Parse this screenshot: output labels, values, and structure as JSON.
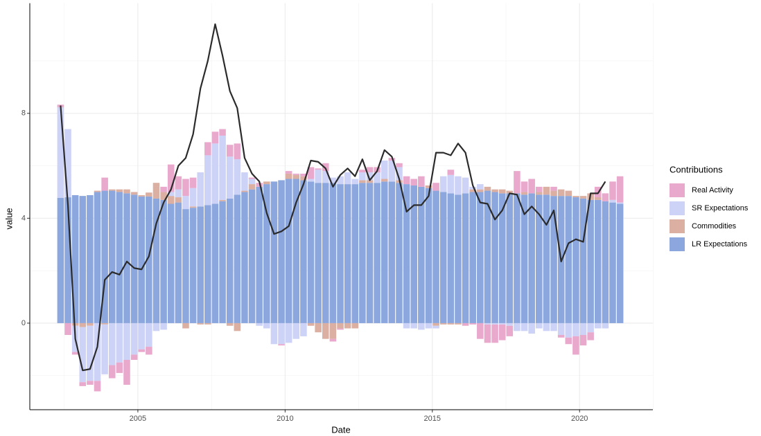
{
  "chart_data": {
    "type": "stacked-bar-line",
    "x_label": "Date",
    "y_label": "value",
    "legend_title": "Contributions",
    "x": [
      2002.375,
      2002.625,
      2002.875,
      2003.125,
      2003.375,
      2003.625,
      2003.875,
      2004.125,
      2004.375,
      2004.625,
      2004.875,
      2005.125,
      2005.375,
      2005.625,
      2005.875,
      2006.125,
      2006.375,
      2006.625,
      2006.875,
      2007.125,
      2007.375,
      2007.625,
      2007.875,
      2008.125,
      2008.375,
      2008.625,
      2008.875,
      2009.125,
      2009.375,
      2009.625,
      2009.875,
      2010.125,
      2010.375,
      2010.625,
      2010.875,
      2011.125,
      2011.375,
      2011.625,
      2011.875,
      2012.125,
      2012.375,
      2012.625,
      2012.875,
      2013.125,
      2013.375,
      2013.625,
      2013.875,
      2014.125,
      2014.375,
      2014.625,
      2014.875,
      2015.125,
      2015.375,
      2015.625,
      2015.875,
      2016.125,
      2016.375,
      2016.625,
      2016.875,
      2017.125,
      2017.375,
      2017.625,
      2017.875,
      2018.125,
      2018.375,
      2018.625,
      2018.875,
      2019.125,
      2019.375,
      2019.625,
      2019.875,
      2020.125,
      2020.375,
      2020.625,
      2020.875,
      2021.125,
      2021.375
    ],
    "series": [
      {
        "name": "Real Activity",
        "color": "#e9a9cd",
        "values": [
          0.1,
          -0.45,
          -0.1,
          -0.15,
          -0.15,
          -0.4,
          0.5,
          -0.5,
          -0.4,
          -0.95,
          -0.2,
          -0.1,
          -0.3,
          0,
          0.2,
          1.05,
          0.5,
          0.65,
          0.4,
          0,
          0.5,
          0.45,
          0.25,
          0.45,
          0.6,
          0,
          0.05,
          0.15,
          0,
          0,
          -0.05,
          0.1,
          0.05,
          0.1,
          0.45,
          0.05,
          0.3,
          -0.1,
          -0.05,
          0,
          0,
          0.1,
          0.2,
          0.2,
          0,
          0.1,
          0.15,
          0.3,
          0.25,
          0.4,
          0,
          0.3,
          0,
          0.2,
          0,
          -0.1,
          -0.05,
          -0.6,
          -0.7,
          -0.7,
          -0.6,
          -0.4,
          0.85,
          0.4,
          0.55,
          0.2,
          0,
          0.15,
          -0.1,
          -0.25,
          -0.7,
          -0.4,
          -0.3,
          0.4,
          0.3,
          0.7,
          1.0
        ]
      },
      {
        "name": "SR Expectations",
        "color": "#cdd2f7",
        "values": [
          3.45,
          2.6,
          -1.0,
          -2.1,
          -2.1,
          -2.2,
          -1.9,
          -1.6,
          -1.5,
          -1.4,
          -1.2,
          -1.0,
          -0.9,
          -0.3,
          -0.25,
          0.15,
          0.3,
          0.5,
          0.7,
          1.3,
          1.9,
          2.3,
          2.45,
          1.6,
          1.35,
          0.7,
          0.2,
          -0.1,
          -0.2,
          -0.8,
          -0.8,
          -0.75,
          -0.6,
          -0.5,
          0.1,
          0.5,
          0.45,
          0.2,
          0.3,
          0.45,
          0.2,
          0.3,
          0.3,
          0.4,
          0.7,
          0.8,
          0.5,
          -0.2,
          -0.2,
          -0.25,
          -0.2,
          -0.1,
          0.6,
          0.7,
          0.7,
          0.6,
          0.1,
          0.2,
          -0.05,
          -0.05,
          -0.05,
          -0.1,
          -0.3,
          -0.3,
          -0.4,
          -0.2,
          -0.3,
          -0.3,
          -0.45,
          -0.55,
          -0.5,
          -0.45,
          -0.35,
          -0.2,
          -0.2,
          0.1,
          0.05
        ]
      },
      {
        "name": "Commodities",
        "color": "#dbb0a2",
        "values": [
          0,
          0,
          -0.1,
          -0.15,
          -0.1,
          0.05,
          -0.05,
          0.05,
          0.1,
          0.15,
          0.1,
          0.05,
          0.15,
          0.6,
          0.3,
          0.3,
          0.2,
          -0.2,
          0.05,
          -0.05,
          -0.05,
          0,
          0.05,
          -0.1,
          -0.3,
          0.05,
          0.2,
          0,
          0.1,
          0,
          0,
          0.2,
          0.15,
          0.15,
          -0.1,
          -0.35,
          -0.6,
          -0.6,
          -0.2,
          -0.2,
          -0.2,
          0.1,
          0.1,
          0,
          0.1,
          0,
          0.1,
          0,
          0,
          0,
          0.1,
          -0.1,
          -0.05,
          -0.05,
          -0.05,
          0,
          0.1,
          0.1,
          0.15,
          0.1,
          0.15,
          0.1,
          0,
          0.1,
          0,
          0.1,
          0.3,
          0.2,
          0.25,
          0.2,
          0.05,
          0.1,
          0.25,
          0.1,
          0,
          0,
          0
        ]
      },
      {
        "name": "LR Expectations",
        "color": "#8ca7dd",
        "values": [
          4.78,
          4.8,
          4.88,
          4.85,
          4.88,
          5.0,
          5.05,
          5.05,
          5.0,
          4.95,
          4.9,
          4.83,
          4.83,
          4.75,
          4.7,
          4.55,
          4.6,
          4.35,
          4.4,
          4.45,
          4.5,
          4.55,
          4.65,
          4.75,
          4.9,
          5.0,
          5.1,
          5.2,
          5.3,
          5.4,
          5.45,
          5.5,
          5.5,
          5.45,
          5.4,
          5.35,
          5.35,
          5.35,
          5.3,
          5.3,
          5.3,
          5.35,
          5.35,
          5.35,
          5.4,
          5.4,
          5.35,
          5.3,
          5.25,
          5.2,
          5.15,
          5.05,
          5.0,
          4.95,
          4.9,
          4.95,
          5.0,
          5.0,
          5.05,
          5.0,
          4.95,
          4.95,
          4.95,
          4.9,
          4.95,
          4.9,
          4.9,
          4.85,
          4.85,
          4.85,
          4.8,
          4.75,
          4.7,
          4.7,
          4.65,
          4.6,
          4.55
        ]
      }
    ],
    "line": {
      "color": "#2b2b2b",
      "values": [
        8.3,
        4.5,
        -0.6,
        -1.8,
        -1.75,
        -0.9,
        1.65,
        1.95,
        1.85,
        2.35,
        2.1,
        2.05,
        2.55,
        3.8,
        4.6,
        5.1,
        6.0,
        6.3,
        7.2,
        8.95,
        10.0,
        11.4,
        10.2,
        8.85,
        8.2,
        6.3,
        5.7,
        5.4,
        4.2,
        3.4,
        3.5,
        3.7,
        4.6,
        5.3,
        6.2,
        6.15,
        5.9,
        5.2,
        5.65,
        5.9,
        5.6,
        6.25,
        5.45,
        5.8,
        6.6,
        6.35,
        5.5,
        4.25,
        4.5,
        4.5,
        4.85,
        6.5,
        6.5,
        6.4,
        6.85,
        6.5,
        5.25,
        4.6,
        4.55,
        3.95,
        4.3,
        4.95,
        4.9,
        4.15,
        4.45,
        4.15,
        3.75,
        4.3,
        2.35,
        3.05,
        3.2,
        3.1,
        4.95,
        4.95,
        5.4,
        null,
        null
      ]
    },
    "xlim": [
      2001.33,
      2022.49
    ],
    "ylim": [
      -3.3,
      12.2
    ],
    "xticks": [
      2005,
      2010,
      2015,
      2020
    ],
    "yticks": [
      0,
      4,
      8
    ],
    "xminorticks": [
      2002.5,
      2007.5,
      2012.5,
      2017.5,
      2022.5
    ],
    "yminorticks": [
      -2,
      2,
      6,
      10
    ],
    "grid": true
  }
}
